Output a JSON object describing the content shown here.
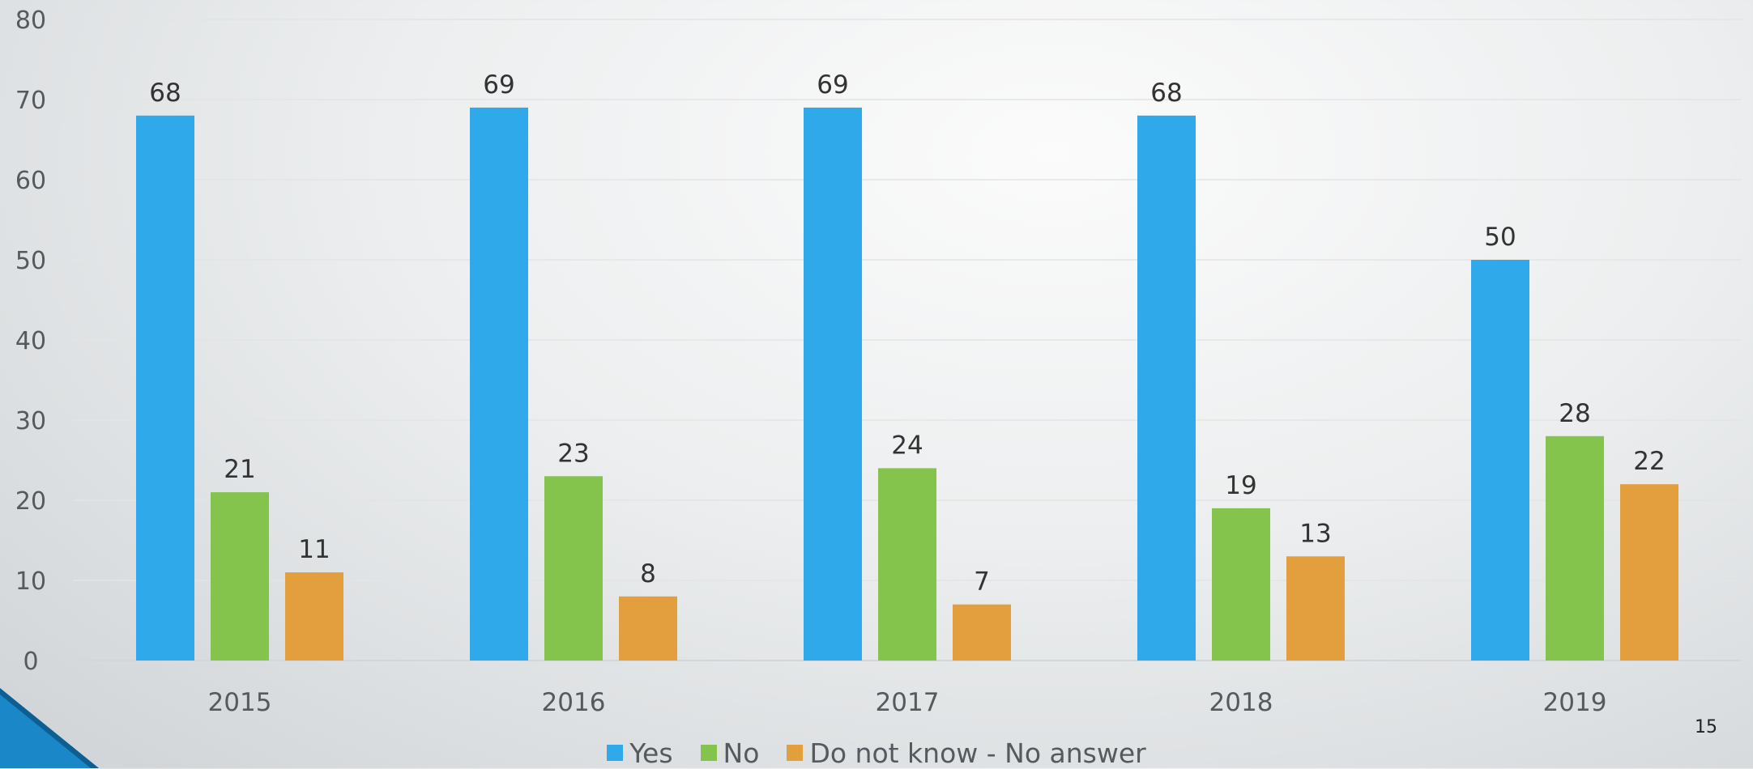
{
  "chart_data": {
    "type": "bar",
    "title": "",
    "xlabel": "",
    "ylabel": "",
    "categories": [
      "2015",
      "2016",
      "2017",
      "2018",
      "2019"
    ],
    "series": [
      {
        "name": "Yes",
        "values": [
          68,
          69,
          69,
          68,
          50
        ],
        "labels": [
          "68",
          "69",
          "69",
          "68",
          "50"
        ],
        "color": "#30a9ea"
      },
      {
        "name": "No",
        "values": [
          21,
          23,
          24,
          19,
          28
        ],
        "labels": [
          "21",
          "23",
          "24",
          "19",
          "28"
        ],
        "color": "#84c44d"
      },
      {
        "name": "Do not know - No answer",
        "values": [
          11,
          8,
          7,
          13,
          22
        ],
        "labels": [
          "11",
          "8",
          "7",
          "13",
          "22"
        ],
        "color": "#e39e3e"
      }
    ],
    "ylim": [
      0,
      80
    ],
    "yticks": [
      "0",
      "10",
      "20",
      "30",
      "40",
      "50",
      "60",
      "70",
      "80"
    ],
    "grid": true,
    "legend_position": "bottom"
  },
  "slide": {
    "page_number": "15",
    "accent_color": "#1a87c9"
  }
}
